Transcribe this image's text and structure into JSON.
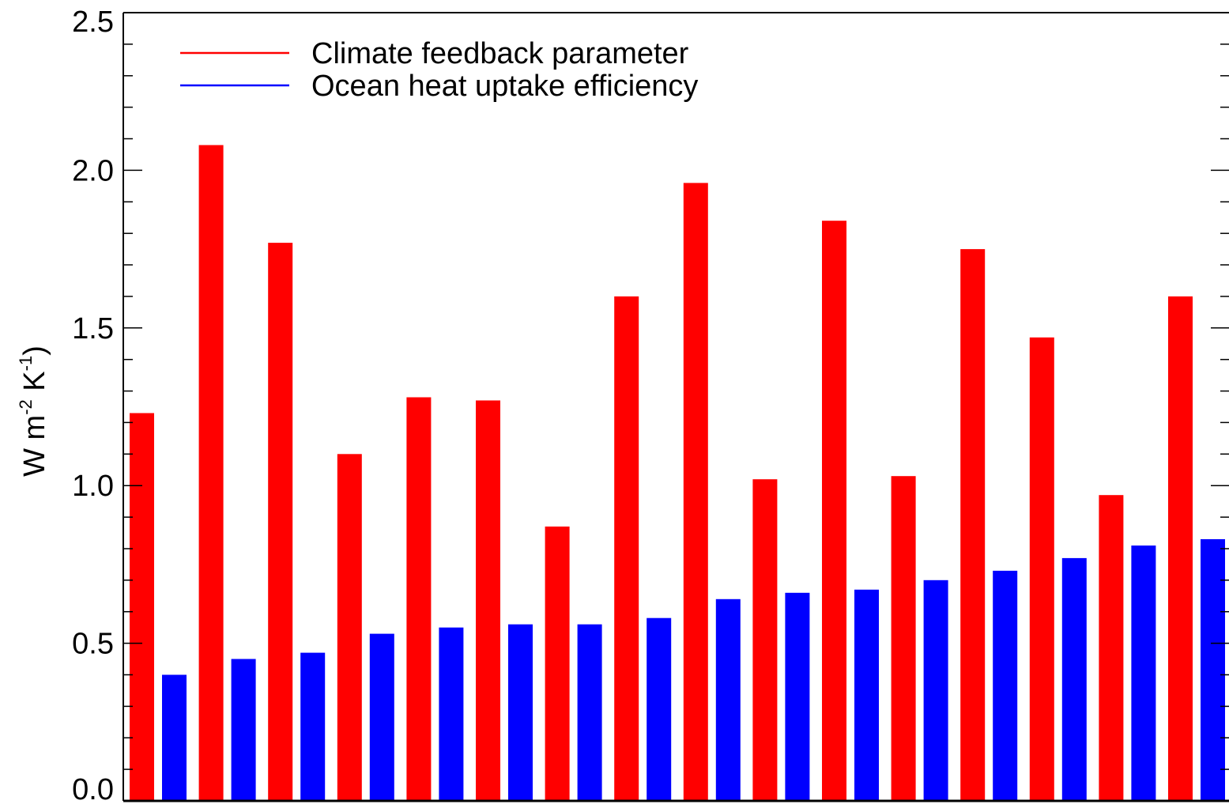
{
  "chart_data": {
    "type": "bar",
    "title": "",
    "xlabel": "",
    "ylabel": {
      "prefix": "W m",
      "exp1": "-2",
      "middle": " K",
      "exp2": "-1",
      "suffix": ")"
    },
    "ylim": [
      0,
      2.5
    ],
    "yticks": [
      {
        "value": 0.0,
        "label": "0.0"
      },
      {
        "value": 0.5,
        "label": "0.5"
      },
      {
        "value": 1.0,
        "label": "1.0"
      },
      {
        "value": 1.5,
        "label": "1.5"
      },
      {
        "value": 2.0,
        "label": "2.0"
      },
      {
        "value": 2.5,
        "label": "2.5"
      }
    ],
    "minor_tick_step": 0.1,
    "grid": false,
    "legend_position": "top-left",
    "series": [
      {
        "name": "Climate feedback parameter",
        "color": "#ff0000",
        "values": [
          1.23,
          2.08,
          1.77,
          1.1,
          1.28,
          1.27,
          0.87,
          1.6,
          1.96,
          1.02,
          1.84,
          1.03,
          1.75,
          1.47,
          0.97,
          1.6
        ]
      },
      {
        "name": "Ocean heat uptake efficiency",
        "color": "#0000ff",
        "values": [
          0.4,
          0.45,
          0.47,
          0.53,
          0.55,
          0.56,
          0.56,
          0.58,
          0.64,
          0.66,
          0.67,
          0.7,
          0.73,
          0.77,
          0.81,
          0.83
        ]
      }
    ]
  }
}
